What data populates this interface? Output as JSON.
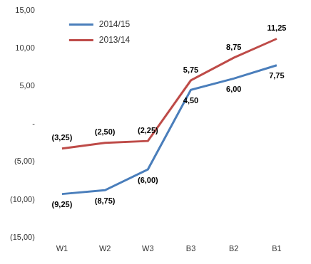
{
  "chart_data": {
    "type": "line",
    "categories": [
      "W1",
      "W2",
      "W3",
      "B3",
      "B2",
      "B1"
    ],
    "series": [
      {
        "name": "2014/15",
        "color": "#4a7ebb",
        "values": [
          -9.25,
          -8.75,
          -6,
          4.5,
          6,
          7.75
        ],
        "value_labels": [
          "(9,25)",
          "(8,75)",
          "(6,00)",
          "4,50",
          "6,00",
          "7,75"
        ]
      },
      {
        "name": "2013/14",
        "color": "#be4b48",
        "values": [
          -3.25,
          -2.5,
          -2.25,
          5.75,
          8.75,
          11.25
        ],
        "value_labels": [
          "(3,25)",
          "(2,50)",
          "(2,25)",
          "5,75",
          "8,75",
          "11,25"
        ]
      }
    ],
    "ylim": [
      -15,
      15
    ],
    "yticks": [
      {
        "value": -15,
        "label": "(15,00)"
      },
      {
        "value": -10,
        "label": "(10,00)"
      },
      {
        "value": -5,
        "label": "(5,00)"
      },
      {
        "value": 0,
        "label": "-"
      },
      {
        "value": 5,
        "label": "5,00"
      },
      {
        "value": 10,
        "label": "10,00"
      },
      {
        "value": 15,
        "label": "15,00"
      }
    ],
    "grid": false,
    "legend": "top-left",
    "data_labels": true
  }
}
